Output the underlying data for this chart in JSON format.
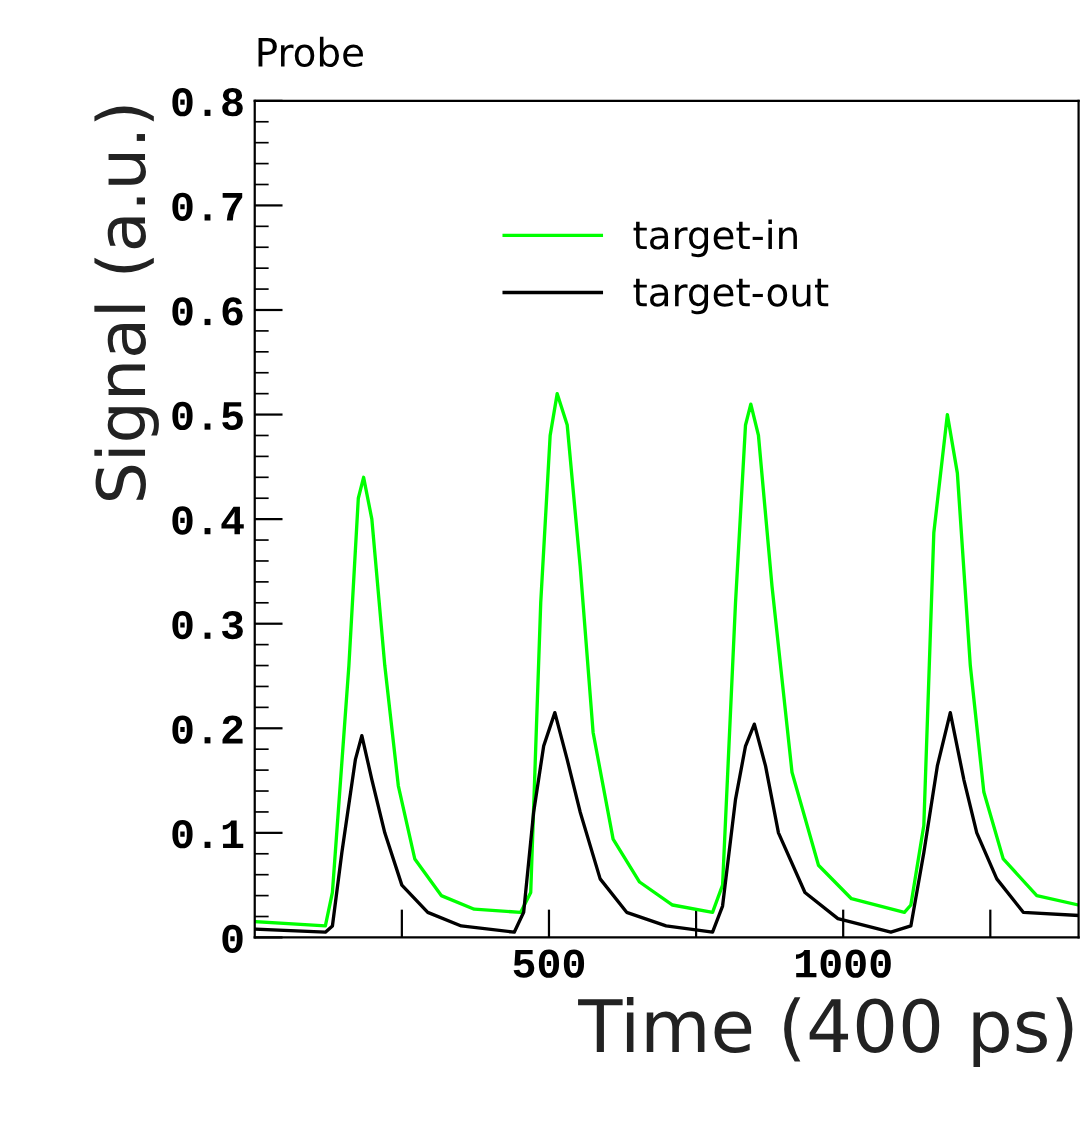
{
  "chart_data": {
    "type": "line",
    "title": "Probe",
    "xlabel": "Time (400 ps)",
    "ylabel": "Signal (a.u.)",
    "xlim": [
      0,
      1400
    ],
    "xticks": [
      {
        "value": 250,
        "label": null
      },
      500,
      {
        "value": 750,
        "label": null
      },
      1000,
      {
        "value": 1250,
        "label": null
      }
    ],
    "ylim": [
      0,
      0.8
    ],
    "yticks": [
      0,
      0.1,
      0.2,
      0.3,
      0.4,
      0.5,
      0.6,
      0.7,
      0.8
    ],
    "grid": false,
    "legend": "top",
    "marker": "none",
    "line_style": "solid",
    "series": [
      {
        "name": "target-in",
        "color": "#00ff00",
        "x": [
          2,
          120,
          132,
          160,
          176,
          185,
          199,
          221,
          244,
          272,
          317,
          373,
          452,
          469,
          486,
          502,
          514,
          531,
          553,
          575,
          609,
          654,
          710,
          778,
          795,
          817,
          834,
          843,
          856,
          879,
          913,
          958,
          1014,
          1104,
          1115,
          1137,
          1154,
          1177,
          1194,
          1216,
          1239,
          1272,
          1329,
          1400
        ],
        "values": [
          0.015,
          0.011,
          0.043,
          0.26,
          0.42,
          0.44,
          0.4,
          0.26,
          0.145,
          0.075,
          0.04,
          0.027,
          0.024,
          0.043,
          0.32,
          0.48,
          0.52,
          0.49,
          0.355,
          0.196,
          0.094,
          0.053,
          0.031,
          0.024,
          0.05,
          0.32,
          0.49,
          0.51,
          0.48,
          0.336,
          0.158,
          0.069,
          0.037,
          0.024,
          0.031,
          0.107,
          0.387,
          0.5,
          0.444,
          0.26,
          0.139,
          0.075,
          0.04,
          0.031
        ]
      },
      {
        "name": "target-out",
        "color": "#000000",
        "x": [
          2,
          120,
          132,
          148,
          171,
          182,
          199,
          221,
          250,
          294,
          351,
          441,
          457,
          474,
          491,
          510,
          531,
          553,
          587,
          632,
          699,
          778,
          795,
          817,
          834,
          849,
          868,
          890,
          935,
          991,
          1081,
          1115,
          1137,
          1160,
          1182,
          1205,
          1227,
          1261,
          1306,
          1400
        ],
        "values": [
          0.008,
          0.005,
          0.011,
          0.081,
          0.17,
          0.193,
          0.151,
          0.1,
          0.05,
          0.024,
          0.011,
          0.005,
          0.024,
          0.12,
          0.183,
          0.215,
          0.17,
          0.12,
          0.056,
          0.024,
          0.011,
          0.005,
          0.03,
          0.132,
          0.183,
          0.204,
          0.164,
          0.1,
          0.043,
          0.018,
          0.005,
          0.011,
          0.081,
          0.164,
          0.215,
          0.151,
          0.1,
          0.056,
          0.024,
          0.021
        ]
      }
    ]
  }
}
